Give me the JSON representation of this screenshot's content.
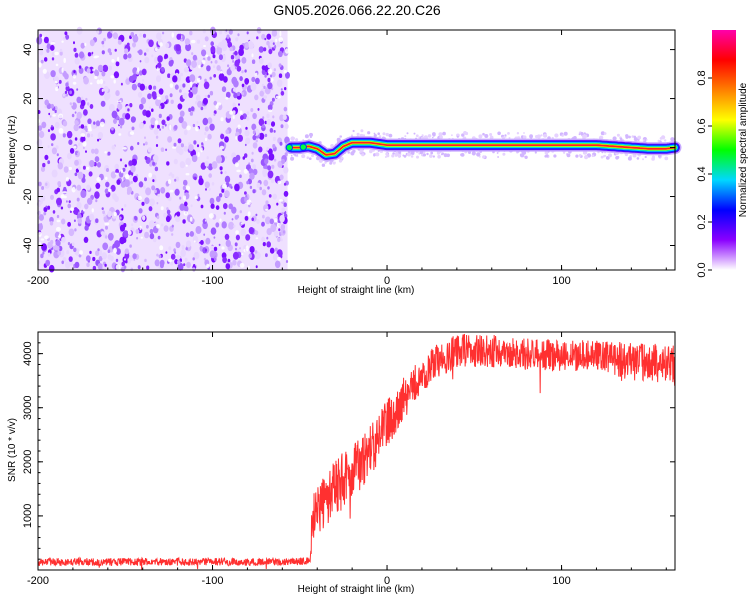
{
  "title": "GN05.2026.066.22.20.C26",
  "chart_data": [
    {
      "type": "heatmap",
      "xlabel": "Height of straight line (km)",
      "ylabel": "Frequency (Hz)",
      "xlim": [
        -200,
        165
      ],
      "ylim": [
        -50,
        48
      ],
      "x_ticks": [
        -200,
        -100,
        0,
        100
      ],
      "y_ticks": [
        -40,
        -20,
        0,
        20,
        40
      ],
      "noise_region": {
        "x_range": [
          -200,
          -57
        ],
        "y_range": [
          -50,
          48
        ],
        "level": "low (0.0-0.3)"
      },
      "signal_track": {
        "x": [
          -55,
          -50,
          -45,
          -40,
          -35,
          -30,
          -25,
          -20,
          -15,
          -10,
          -5,
          0,
          10,
          20,
          40,
          60,
          80,
          100,
          120,
          130,
          140,
          150,
          160,
          165
        ],
        "frequency": [
          0,
          0,
          0.5,
          -0.5,
          -3,
          -2.5,
          0.5,
          2,
          2,
          2,
          1.5,
          1,
          1,
          1,
          1,
          1,
          1,
          1,
          1,
          0.5,
          0,
          -0.5,
          -0.5,
          0
        ],
        "peak_amplitude": 1.0
      },
      "colorbar": {
        "label": "Normalized spectral amplitude",
        "range": [
          0,
          1
        ],
        "ticks": [
          "0.0",
          "0.2",
          "0.4",
          "0.6",
          "0.8"
        ],
        "colors": [
          "#ffffff",
          "#8a00ff",
          "#0000ff",
          "#00d8ff",
          "#00ff00",
          "#ffff00",
          "#ff8000",
          "#ff0000",
          "#ff00aa"
        ]
      }
    },
    {
      "type": "line",
      "xlabel": "Height of straight line (km)",
      "ylabel": "SNR (10 * v/v)",
      "xlim": [
        -200,
        165
      ],
      "ylim": [
        0,
        4400
      ],
      "x_ticks": [
        -200,
        -100,
        0,
        100
      ],
      "y_ticks": [
        1000,
        2000,
        3000,
        4000
      ],
      "color": "#ff3030",
      "envelope": {
        "x": [
          -200,
          -60,
          -44,
          -43,
          -40,
          -30,
          -20,
          -10,
          0,
          10,
          20,
          30,
          40,
          60,
          80,
          100,
          120,
          140,
          160,
          165
        ],
        "mean": [
          150,
          150,
          170,
          900,
          1100,
          1500,
          1800,
          2200,
          2700,
          3200,
          3600,
          3900,
          4050,
          4050,
          4000,
          3950,
          3950,
          3850,
          3850,
          3800
        ],
        "amplitude": [
          70,
          70,
          70,
          450,
          500,
          550,
          500,
          500,
          450,
          400,
          320,
          320,
          320,
          300,
          300,
          300,
          300,
          350,
          350,
          350
        ]
      }
    }
  ]
}
